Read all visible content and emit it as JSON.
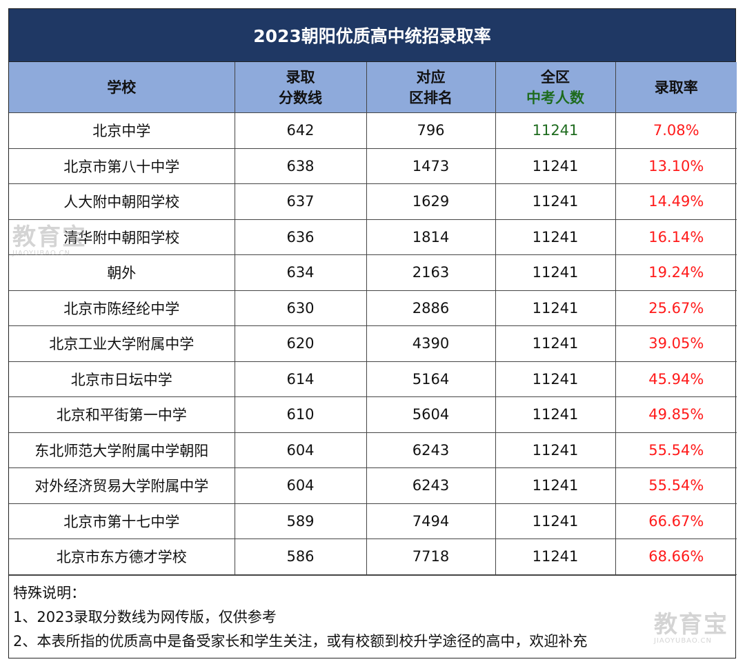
{
  "title": "2023朝阳优质高中统招录取率",
  "table": {
    "headers": [
      {
        "line1": "学校",
        "line2": ""
      },
      {
        "line1": "录取",
        "line2": "分数线"
      },
      {
        "line1": "对应",
        "line2": "区排名"
      },
      {
        "line1": "全区",
        "line2": "中考人数"
      },
      {
        "line1": "录取率",
        "line2": ""
      }
    ],
    "rows": [
      {
        "school": "北京中学",
        "score": "642",
        "rank": "796",
        "total": "11241",
        "rate": "7.08%"
      },
      {
        "school": "北京市第八十中学",
        "score": "638",
        "rank": "1473",
        "total": "11241",
        "rate": "13.10%"
      },
      {
        "school": "人大附中朝阳学校",
        "score": "637",
        "rank": "1629",
        "total": "11241",
        "rate": "14.49%"
      },
      {
        "school": "清华附中朝阳学校",
        "score": "636",
        "rank": "1814",
        "total": "11241",
        "rate": "16.14%"
      },
      {
        "school": "朝外",
        "score": "634",
        "rank": "2163",
        "total": "11241",
        "rate": "19.24%"
      },
      {
        "school": "北京市陈经纶中学",
        "score": "630",
        "rank": "2886",
        "total": "11241",
        "rate": "25.67%"
      },
      {
        "school": "北京工业大学附属中学",
        "score": "620",
        "rank": "4390",
        "total": "11241",
        "rate": "39.05%"
      },
      {
        "school": "北京市日坛中学",
        "score": "614",
        "rank": "5164",
        "total": "11241",
        "rate": "45.94%"
      },
      {
        "school": "北京和平街第一中学",
        "score": "610",
        "rank": "5604",
        "total": "11241",
        "rate": "49.85%"
      },
      {
        "school": "东北师范大学附属中学朝阳",
        "score": "604",
        "rank": "6243",
        "total": "11241",
        "rate": "55.54%"
      },
      {
        "school": "对外经济贸易大学附属中学",
        "score": "604",
        "rank": "6243",
        "total": "11241",
        "rate": "55.54%"
      },
      {
        "school": "北京市第十七中学",
        "score": "589",
        "rank": "7494",
        "total": "11241",
        "rate": "66.67%"
      },
      {
        "school": "北京市东方德才学校",
        "score": "586",
        "rank": "7718",
        "total": "11241",
        "rate": "68.66%"
      }
    ]
  },
  "notes": {
    "heading": "特殊说明：",
    "lines": [
      "1、2023录取分数线为网传版，仅供参考",
      "2、本表所指的优质高中是备受家长和学生关注，或有校额到校升学途径的高中，欢迎补充"
    ]
  },
  "watermark": {
    "text": "教育宝",
    "url": "JIAOYUBAO.CN"
  },
  "colors": {
    "title_bg": "#1f3864",
    "header_bg": "#8eaadb",
    "rate_red": "#ff1a1a",
    "green": "#1e6b1e"
  }
}
